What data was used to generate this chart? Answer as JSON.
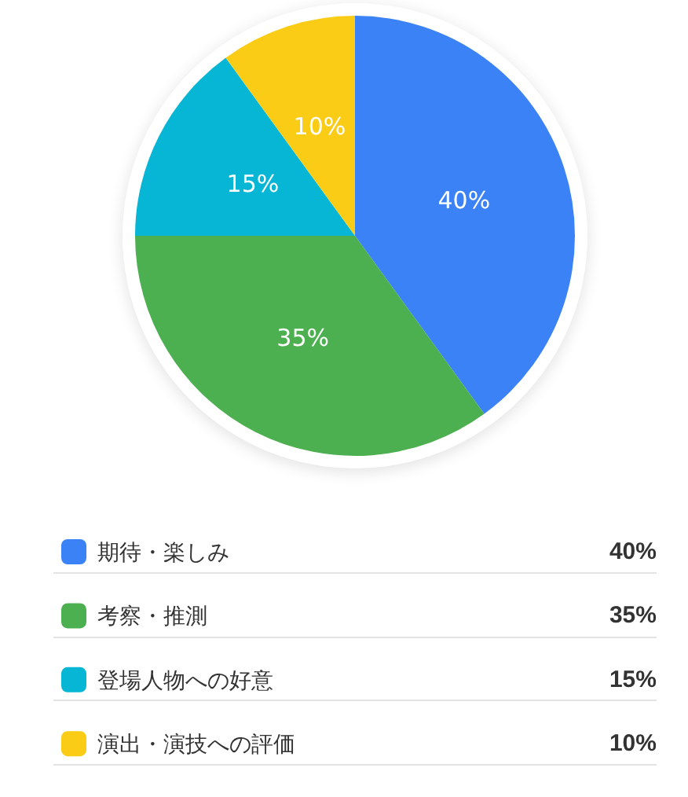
{
  "chart_data": {
    "type": "pie",
    "categories": [
      "期待・楽しみ",
      "考察・推測",
      "登場人物への好意",
      "演出・演技への評価"
    ],
    "values": [
      40,
      35,
      15,
      10
    ],
    "colors": [
      "#3b82f6",
      "#4caf50",
      "#06b6d4",
      "#facc15"
    ],
    "value_labels": [
      "40%",
      "35%",
      "15%",
      "10%"
    ],
    "legend": "bottom"
  }
}
